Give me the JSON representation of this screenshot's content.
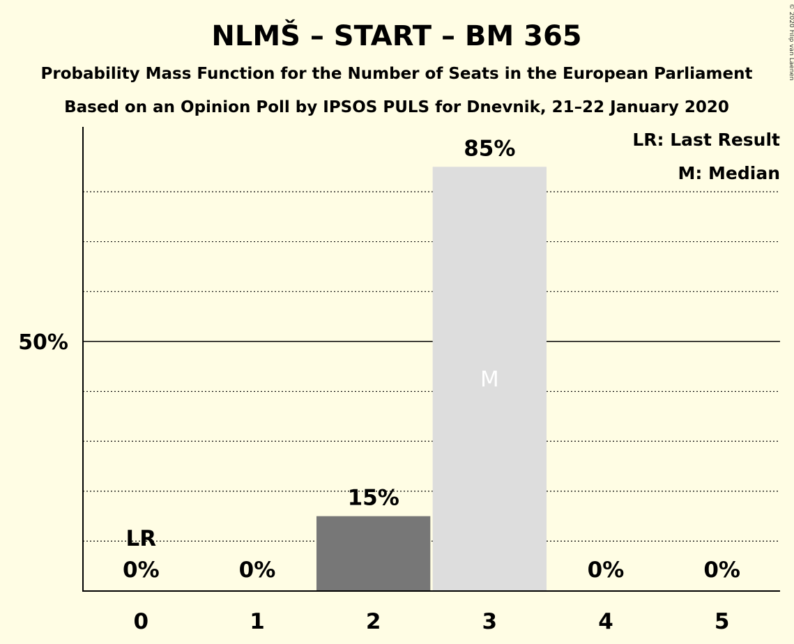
{
  "title": "NLMŠ – START – BM 365",
  "subtitle1": "Probability Mass Function for the Number of Seats in the European Parliament",
  "subtitle2": "Based on an Opinion Poll by IPSOS PULS for Dnevnik, 21–22 January 2020",
  "copyright": "© 2020 Filip van Laenen",
  "legend": {
    "last_result": "LR: Last Result",
    "median": "M: Median"
  },
  "colors": {
    "background": "#FFFDE4",
    "bar_default": "#777777",
    "bar_median": "#DDDDDD",
    "axis": "#000000"
  },
  "chart_data": {
    "type": "bar",
    "categories": [
      "0",
      "1",
      "2",
      "3",
      "4",
      "5"
    ],
    "values": [
      0,
      0,
      15,
      85,
      0,
      0
    ],
    "value_labels": [
      "0%",
      "0%",
      "15%",
      "85%",
      "0%",
      "0%"
    ],
    "ylim": [
      0,
      93
    ],
    "yticks": [
      {
        "value": 50,
        "label": "50%"
      }
    ],
    "gridlines": [
      10,
      20,
      30,
      40,
      60,
      70,
      80
    ],
    "last_result_category": "0",
    "last_result_label": "LR",
    "median_category": "3",
    "median_label": "M",
    "xlabel": "",
    "ylabel": ""
  }
}
